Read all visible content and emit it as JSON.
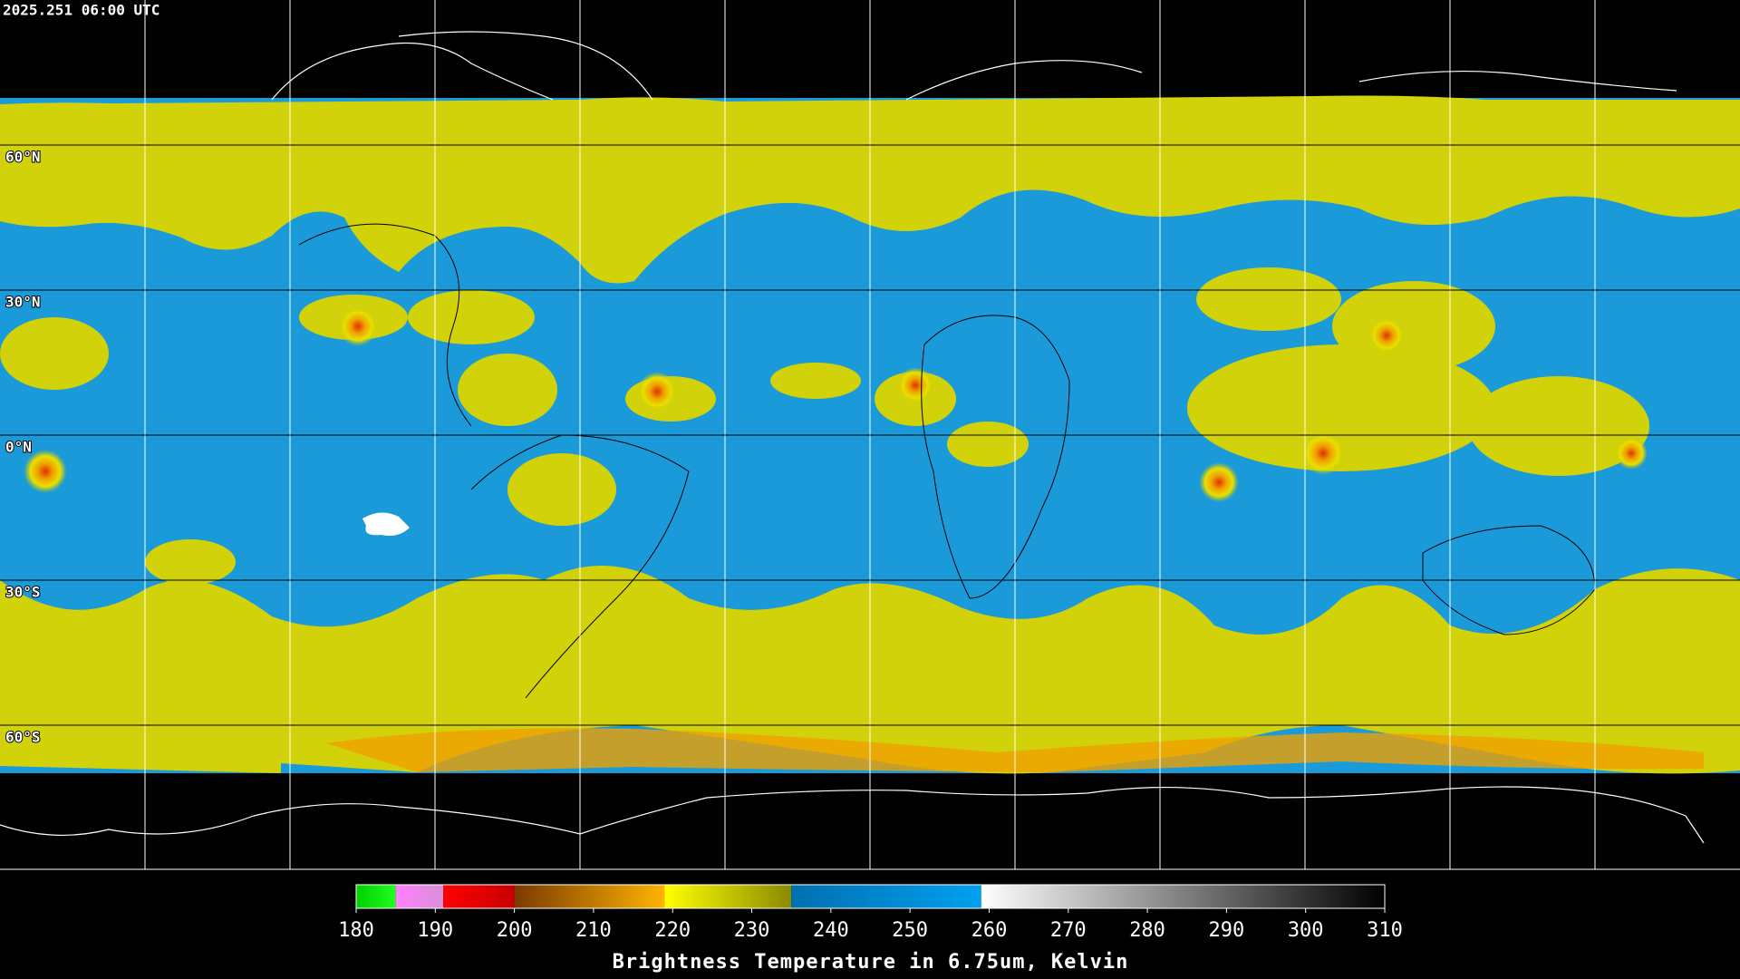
{
  "timestamp": "2025.251 06:00 UTC",
  "latitude_labels": [
    "60°N",
    "30°N",
    "0°N",
    "30°S",
    "60°S"
  ],
  "colorbar": {
    "title": "Brightness Temperature in 6.75um, Kelvin",
    "range": [
      180,
      310
    ],
    "ticks": [
      180,
      190,
      200,
      210,
      220,
      230,
      240,
      250,
      260,
      270,
      280,
      290,
      300,
      310
    ],
    "segments": [
      {
        "range": [
          180,
          185
        ],
        "colors": [
          "#00d000",
          "#20ff20"
        ]
      },
      {
        "range": [
          185,
          191
        ],
        "colors": [
          "#ff80ff",
          "#d890d8"
        ]
      },
      {
        "range": [
          191,
          200
        ],
        "colors": [
          "#ff0000",
          "#c80000"
        ]
      },
      {
        "range": [
          200,
          219
        ],
        "colors": [
          "#7a3a00",
          "#ffb400"
        ]
      },
      {
        "range": [
          219,
          235
        ],
        "colors": [
          "#ffff00",
          "#8a8a00"
        ]
      },
      {
        "range": [
          235,
          259
        ],
        "colors": [
          "#0070b0",
          "#00a0f0"
        ]
      },
      {
        "range": [
          259,
          310
        ],
        "colors": [
          "#ffffff",
          "#000000"
        ]
      }
    ]
  }
}
